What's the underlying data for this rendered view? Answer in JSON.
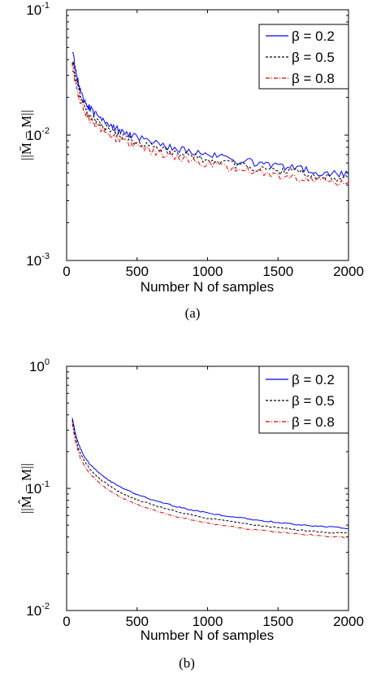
{
  "chart_data": [
    {
      "type": "line",
      "panel_label": "(a)",
      "xlabel": "Number N of samples",
      "ylabel": "||M̄ − M||",
      "xlim": [
        0,
        2000
      ],
      "ylim": [
        0.001,
        0.1
      ],
      "yscale": "log",
      "x_ticks": [
        0,
        500,
        1000,
        1500,
        2000
      ],
      "y_ticks": [
        {
          "value": 0.001,
          "base": "10",
          "exp": "-3"
        },
        {
          "value": 0.01,
          "base": "10",
          "exp": "-2"
        },
        {
          "value": 0.1,
          "base": "10",
          "exp": "-1"
        }
      ],
      "legend_position": "top-right",
      "x": [
        40,
        60,
        80,
        100,
        130,
        160,
        200,
        250,
        300,
        350,
        400,
        450,
        500,
        600,
        700,
        800,
        900,
        1000,
        1100,
        1200,
        1300,
        1400,
        1500,
        1600,
        1700,
        1800,
        1900,
        2000
      ],
      "series": [
        {
          "name": "β = 0.2",
          "color": "#0000ff",
          "dash": "",
          "values": [
            0.048,
            0.035,
            0.027,
            0.022,
            0.0185,
            0.0165,
            0.0148,
            0.0132,
            0.0122,
            0.0113,
            0.0107,
            0.0101,
            0.0097,
            0.0089,
            0.0082,
            0.0077,
            0.0073,
            0.007,
            0.0066,
            0.0063,
            0.0061,
            0.0059,
            0.0057,
            0.0055,
            0.0053,
            0.0051,
            0.005,
            0.0049
          ]
        },
        {
          "name": "β = 0.5",
          "color": "#000000",
          "dash": "3,2",
          "values": [
            0.04,
            0.03,
            0.024,
            0.0195,
            0.0165,
            0.0148,
            0.0132,
            0.0118,
            0.011,
            0.0102,
            0.0097,
            0.0092,
            0.0088,
            0.0081,
            0.0075,
            0.0071,
            0.0067,
            0.0064,
            0.006,
            0.0058,
            0.0056,
            0.0054,
            0.0052,
            0.0051,
            0.0049,
            0.0047,
            0.0046,
            0.0045
          ]
        },
        {
          "name": "β = 0.8",
          "color": "#e00000",
          "dash": "5,2,1,2",
          "values": [
            0.036,
            0.027,
            0.022,
            0.018,
            0.0153,
            0.0137,
            0.0122,
            0.011,
            0.0102,
            0.0095,
            0.009,
            0.0086,
            0.0082,
            0.0075,
            0.007,
            0.0066,
            0.0062,
            0.0059,
            0.0056,
            0.0054,
            0.0052,
            0.005,
            0.0048,
            0.0047,
            0.0045,
            0.0044,
            0.0043,
            0.0042
          ]
        }
      ]
    },
    {
      "type": "line",
      "panel_label": "(b)",
      "xlabel": "Number N of samples",
      "ylabel": "||M̂ − M||",
      "xlim": [
        0,
        2000
      ],
      "ylim": [
        0.01,
        1
      ],
      "yscale": "log",
      "x_ticks": [
        0,
        500,
        1000,
        1500,
        2000
      ],
      "y_ticks": [
        {
          "value": 0.01,
          "base": "10",
          "exp": "-2"
        },
        {
          "value": 0.1,
          "base": "10",
          "exp": "-1"
        },
        {
          "value": 1,
          "base": "10",
          "exp": "0"
        }
      ],
      "legend_position": "top-right",
      "x": [
        40,
        60,
        80,
        100,
        130,
        160,
        200,
        250,
        300,
        350,
        400,
        450,
        500,
        600,
        700,
        800,
        900,
        1000,
        1100,
        1200,
        1300,
        1400,
        1500,
        1600,
        1700,
        1800,
        1900,
        2000
      ],
      "series": [
        {
          "name": "β = 0.2",
          "color": "#0000ff",
          "dash": "",
          "values": [
            0.38,
            0.29,
            0.24,
            0.21,
            0.18,
            0.16,
            0.145,
            0.128,
            0.117,
            0.107,
            0.1,
            0.094,
            0.089,
            0.081,
            0.075,
            0.07,
            0.066,
            0.063,
            0.06,
            0.058,
            0.056,
            0.054,
            0.053,
            0.051,
            0.05,
            0.049,
            0.048,
            0.047
          ]
        },
        {
          "name": "β = 0.5",
          "color": "#000000",
          "dash": "3,2",
          "values": [
            0.36,
            0.27,
            0.22,
            0.19,
            0.165,
            0.147,
            0.131,
            0.116,
            0.106,
            0.097,
            0.091,
            0.085,
            0.081,
            0.074,
            0.068,
            0.064,
            0.06,
            0.057,
            0.055,
            0.053,
            0.051,
            0.049,
            0.048,
            0.046,
            0.045,
            0.044,
            0.043,
            0.043
          ]
        },
        {
          "name": "β = 0.8",
          "color": "#e00000",
          "dash": "5,2,1,2",
          "values": [
            0.34,
            0.25,
            0.205,
            0.175,
            0.15,
            0.134,
            0.12,
            0.106,
            0.096,
            0.089,
            0.083,
            0.078,
            0.074,
            0.067,
            0.062,
            0.058,
            0.055,
            0.052,
            0.05,
            0.048,
            0.046,
            0.045,
            0.044,
            0.043,
            0.042,
            0.041,
            0.04,
            0.04
          ]
        }
      ]
    }
  ]
}
